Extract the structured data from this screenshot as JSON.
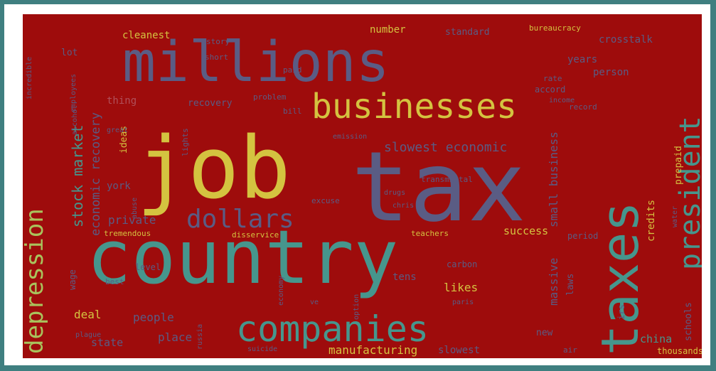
{
  "colors": {
    "page_border": "#3f7f80",
    "frame": "#ffffff",
    "cloud_background": "#9e0c0c",
    "teal": "#46968d",
    "slate": "#5a5c84",
    "yellow": "#d4c340",
    "lime": "#a9c35c",
    "muted": "#b0505a"
  },
  "words": [
    {
      "text": "country",
      "color": "teal"
    },
    {
      "text": "job",
      "color": "yellow"
    },
    {
      "text": "tax",
      "color": "slate"
    },
    {
      "text": "millions",
      "color": "slate"
    },
    {
      "text": "taxes",
      "color": "teal"
    },
    {
      "text": "businesses",
      "color": "yellow"
    },
    {
      "text": "companies",
      "color": "teal"
    },
    {
      "text": "president",
      "color": "teal"
    },
    {
      "text": "depression",
      "color": "lime"
    },
    {
      "text": "dollars",
      "color": "slate"
    },
    {
      "text": "slowest economic",
      "color": "slate"
    },
    {
      "text": "economic recovery",
      "color": "slate"
    },
    {
      "text": "stock market",
      "color": "teal"
    },
    {
      "text": "private",
      "color": "slate"
    },
    {
      "text": "success",
      "color": "yellow"
    },
    {
      "text": "small business",
      "color": "slate"
    },
    {
      "text": "massive",
      "color": "slate"
    },
    {
      "text": "people",
      "color": "slate"
    },
    {
      "text": "place",
      "color": "slate"
    },
    {
      "text": "deal",
      "color": "yellow"
    },
    {
      "text": "likes",
      "color": "yellow"
    },
    {
      "text": "tens",
      "color": "slate"
    },
    {
      "text": "china",
      "color": "teal"
    },
    {
      "text": "state",
      "color": "slate"
    },
    {
      "text": "manufacturing",
      "color": "yellow"
    },
    {
      "text": "slowest",
      "color": "slate"
    },
    {
      "text": "cleanest",
      "color": "yellow"
    },
    {
      "text": "number",
      "color": "yellow"
    },
    {
      "text": "standard",
      "color": "slate"
    },
    {
      "text": "bureaucracy",
      "color": "yellow"
    },
    {
      "text": "crosstalk",
      "color": "slate"
    },
    {
      "text": "years",
      "color": "slate"
    },
    {
      "text": "person",
      "color": "slate"
    },
    {
      "text": "lot",
      "color": "slate"
    },
    {
      "text": "recovery",
      "color": "slate"
    },
    {
      "text": "thing",
      "color": "muted"
    },
    {
      "text": "ideas",
      "color": "yellow"
    },
    {
      "text": "york",
      "color": "slate"
    },
    {
      "text": "tremendous",
      "color": "yellow"
    },
    {
      "text": "disservice",
      "color": "yellow"
    },
    {
      "text": "teachers",
      "color": "yellow"
    },
    {
      "text": "laws",
      "color": "slate"
    },
    {
      "text": "period",
      "color": "slate"
    },
    {
      "text": "credits",
      "color": "yellow"
    },
    {
      "text": "schools",
      "color": "slate"
    },
    {
      "text": "thousands",
      "color": "yellow"
    },
    {
      "text": "prepaid",
      "color": "yellow"
    },
    {
      "text": "carbon",
      "color": "slate"
    },
    {
      "text": "transmittal",
      "color": "slate"
    },
    {
      "text": "emission",
      "color": "slate"
    },
    {
      "text": "chris",
      "color": "slate"
    },
    {
      "text": "excuse",
      "color": "slate"
    },
    {
      "text": "drugs",
      "color": "slate"
    },
    {
      "text": "paris",
      "color": "slate"
    },
    {
      "text": "suicide",
      "color": "slate"
    },
    {
      "text": "russia",
      "color": "slate"
    },
    {
      "text": "wage",
      "color": "slate"
    },
    {
      "text": "level",
      "color": "slate"
    },
    {
      "text": "best",
      "color": "slate"
    },
    {
      "text": "short",
      "color": "slate"
    },
    {
      "text": "story",
      "color": "slate"
    },
    {
      "text": "paid",
      "color": "slate"
    },
    {
      "text": "bill",
      "color": "slate"
    },
    {
      "text": "problem",
      "color": "slate"
    },
    {
      "text": "accord",
      "color": "slate"
    },
    {
      "text": "rate",
      "color": "slate"
    },
    {
      "text": "record",
      "color": "slate"
    },
    {
      "text": "plague",
      "color": "slate"
    },
    {
      "text": "new",
      "color": "slate"
    },
    {
      "text": "lights",
      "color": "slate"
    },
    {
      "text": "abuse",
      "color": "slate"
    },
    {
      "text": "alcohol",
      "color": "slate"
    },
    {
      "text": "incredible",
      "color": "slate"
    },
    {
      "text": "employees",
      "color": "slate"
    },
    {
      "text": "irs",
      "color": "slate"
    },
    {
      "text": "air",
      "color": "slate"
    },
    {
      "text": "water",
      "color": "slate"
    },
    {
      "text": "great",
      "color": "slate"
    },
    {
      "text": "ve",
      "color": "slate"
    },
    {
      "text": "option",
      "color": "slate"
    },
    {
      "text": "economy",
      "color": "slate"
    },
    {
      "text": "income",
      "color": "slate"
    }
  ]
}
